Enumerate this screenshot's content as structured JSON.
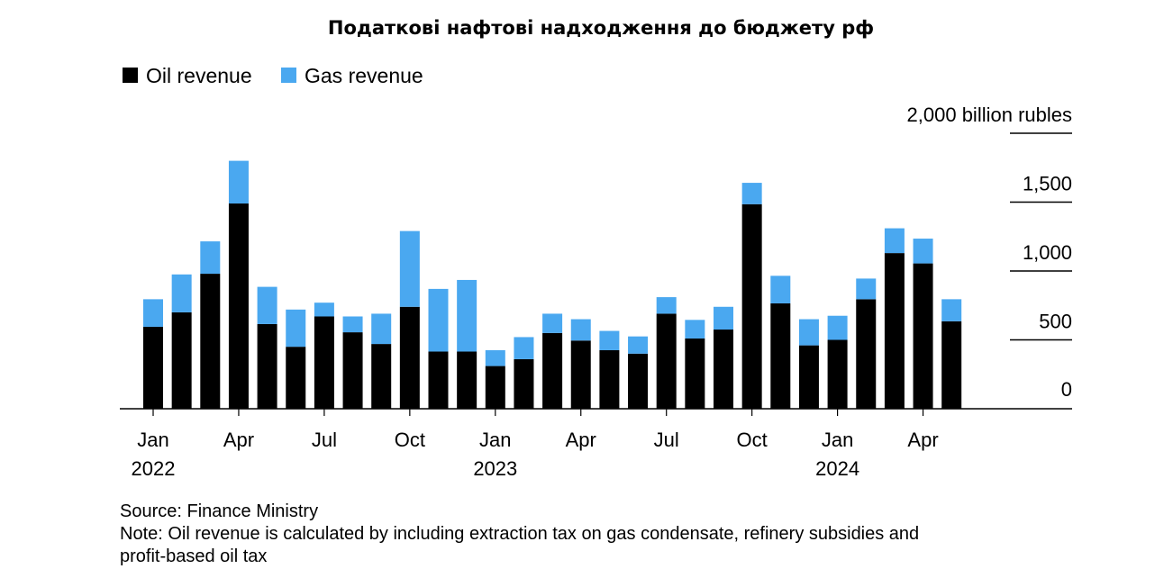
{
  "chart_data": {
    "type": "bar",
    "stacked": true,
    "title": "Податкові нафтові надходження до бюджету рф",
    "unit_label": "2,000 billion rubles",
    "ylim": [
      0,
      2000
    ],
    "yticks": [
      {
        "value": 2000,
        "label": "2,000 billion rubles"
      },
      {
        "value": 1500,
        "label": "1,500"
      },
      {
        "value": 1000,
        "label": "1,000"
      },
      {
        "value": 500,
        "label": "500"
      },
      {
        "value": 0,
        "label": "0"
      }
    ],
    "legend_position": "top-left",
    "categories": [
      "2022-01",
      "2022-02",
      "2022-03",
      "2022-04",
      "2022-05",
      "2022-06",
      "2022-07",
      "2022-08",
      "2022-09",
      "2022-10",
      "2022-11",
      "2022-12",
      "2023-01",
      "2023-02",
      "2023-03",
      "2023-04",
      "2023-05",
      "2023-06",
      "2023-07",
      "2023-08",
      "2023-09",
      "2023-10",
      "2023-11",
      "2023-12",
      "2024-01",
      "2024-02",
      "2024-03",
      "2024-04",
      "2024-05"
    ],
    "xtick_labels": [
      {
        "index": 0,
        "month": "Jan",
        "year": "2022"
      },
      {
        "index": 3,
        "month": "Apr",
        "year": ""
      },
      {
        "index": 6,
        "month": "Jul",
        "year": ""
      },
      {
        "index": 9,
        "month": "Oct",
        "year": ""
      },
      {
        "index": 12,
        "month": "Jan",
        "year": "2023"
      },
      {
        "index": 15,
        "month": "Apr",
        "year": ""
      },
      {
        "index": 18,
        "month": "Jul",
        "year": ""
      },
      {
        "index": 21,
        "month": "Oct",
        "year": ""
      },
      {
        "index": 24,
        "month": "Jan",
        "year": "2024"
      },
      {
        "index": 27,
        "month": "Apr",
        "year": ""
      }
    ],
    "series": [
      {
        "name": "Oil revenue",
        "color": "#000000",
        "values": [
          595,
          700,
          980,
          1490,
          615,
          450,
          670,
          555,
          470,
          740,
          415,
          415,
          310,
          360,
          550,
          495,
          425,
          400,
          690,
          510,
          575,
          1485,
          765,
          460,
          500,
          795,
          1130,
          1055,
          635
        ]
      },
      {
        "name": "Gas revenue",
        "color": "#4aa8f0",
        "values": [
          200,
          275,
          235,
          310,
          270,
          270,
          100,
          115,
          220,
          550,
          455,
          520,
          115,
          160,
          140,
          155,
          140,
          125,
          120,
          135,
          165,
          155,
          200,
          190,
          175,
          150,
          180,
          180,
          160
        ]
      }
    ]
  },
  "footer": {
    "source": "Source: Finance Ministry",
    "note_line1": "Note: Oil revenue is calculated by including extraction tax on gas condensate, refinery subsidies and",
    "note_line2": "profit-based oil tax"
  }
}
